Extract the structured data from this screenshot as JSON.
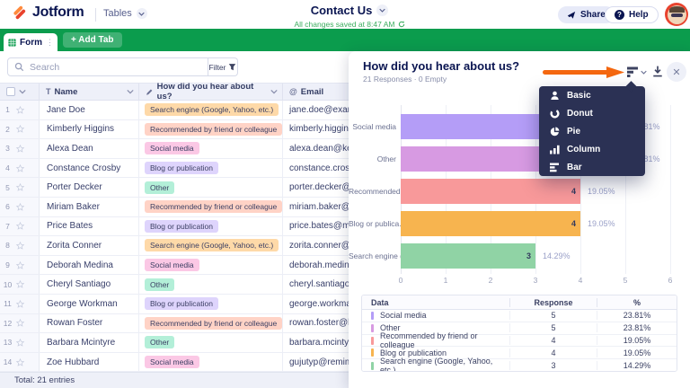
{
  "header": {
    "logo_text": "Jotform",
    "product_label": "Tables",
    "form_title": "Contact Us",
    "autosave_status": "All changes saved at 8:47 AM",
    "share_label": "Share",
    "help_label": "Help"
  },
  "tab_bar": {
    "form_tab_label": "Form",
    "add_tab_label": "+ Add Tab"
  },
  "toolbar": {
    "search_placeholder": "Search",
    "filter_label": "Filter"
  },
  "table": {
    "columns": [
      {
        "icon": "text-column-icon",
        "label": "Name"
      },
      {
        "icon": "pencil-icon",
        "label": "How did you hear about us?"
      },
      {
        "icon": "at-sign-icon",
        "label": "Email"
      }
    ],
    "rows": [
      {
        "num": 1,
        "name": "Jane Doe",
        "answer": "Search engine (Google, Yahoo, etc.)",
        "badge_bg": "#fed9a8",
        "email": "jane.doe@example"
      },
      {
        "num": 2,
        "name": "Kimberly Higgins",
        "answer": "Recommended by friend or colleague",
        "badge_bg": "#ffd3c6",
        "email": "kimberly.higgins@"
      },
      {
        "num": 3,
        "name": "Alexa Dean",
        "answer": "Social media",
        "badge_bg": "#fbc8e5",
        "email": "alexa.dean@kem.c"
      },
      {
        "num": 4,
        "name": "Constance Crosby",
        "answer": "Blog or publication",
        "badge_bg": "#ded4fc",
        "email": "constance.crosby@"
      },
      {
        "num": 5,
        "name": "Porter Decker",
        "answer": "Other",
        "badge_bg": "#b3efd8",
        "email": "porter.decker@liva"
      },
      {
        "num": 6,
        "name": "Miriam Baker",
        "answer": "Recommended by friend or colleague",
        "badge_bg": "#ffd3c6",
        "email": "miriam.baker@vok"
      },
      {
        "num": 7,
        "name": "Price Bates",
        "answer": "Blog or publication",
        "badge_bg": "#ded4fc",
        "email": "price.bates@miky"
      },
      {
        "num": 8,
        "name": "Zorita Conner",
        "answer": "Search engine (Google, Yahoo, etc.)",
        "badge_bg": "#fed9a8",
        "email": "zorita.conner@tos"
      },
      {
        "num": 9,
        "name": "Deborah Medina",
        "answer": "Social media",
        "badge_bg": "#fbc8e5",
        "email": "deborah.medina@"
      },
      {
        "num": 10,
        "name": "Cheryl Santiago",
        "answer": "Other",
        "badge_bg": "#b3efd8",
        "email": "cheryl.santiago@je"
      },
      {
        "num": 11,
        "name": "George Workman",
        "answer": "Blog or publication",
        "badge_bg": "#ded4fc",
        "email": "george.workman@"
      },
      {
        "num": 12,
        "name": "Rowan Foster",
        "answer": "Recommended by friend or colleague",
        "badge_bg": "#ffd3c6",
        "email": "rowan.foster@bih."
      },
      {
        "num": 13,
        "name": "Barbara Mcintyre",
        "answer": "Other",
        "badge_bg": "#b3efd8",
        "email": "barbara.mcintyre@"
      },
      {
        "num": 14,
        "name": "Zoe Hubbard",
        "answer": "Social media",
        "badge_bg": "#fbc8e5",
        "email": "gujutyp@remimigl"
      }
    ],
    "footer": "Total: 21 entries"
  },
  "panel": {
    "title": "How did you hear about us?",
    "responses_summary": "21 Responses · 0 Empty",
    "chart": {
      "max": 6,
      "xticks": [
        "0",
        "1",
        "2",
        "3",
        "4",
        "5",
        "6"
      ],
      "bars": [
        {
          "label": "Social media",
          "value": 5,
          "value_label": "5",
          "pct": "23.81%",
          "color": "#b49df7"
        },
        {
          "label": "Other",
          "value": 5,
          "value_label": "5",
          "pct": "23.81%",
          "color": "#d79ae2"
        },
        {
          "label": "Recommended...",
          "value": 4,
          "value_label": "4",
          "pct": "19.05%",
          "color": "#f8999a"
        },
        {
          "label": "Blog or publica...",
          "value": 4,
          "value_label": "4",
          "pct": "19.05%",
          "color": "#f7b44f"
        },
        {
          "label": "Search engine (...",
          "value": 3,
          "value_label": "3",
          "pct": "14.29%",
          "color": "#90d3a5"
        }
      ]
    },
    "chart_menu": {
      "items": [
        {
          "icon": "basic-chart-icon",
          "label": "Basic"
        },
        {
          "icon": "donut-chart-icon",
          "label": "Donut"
        },
        {
          "icon": "pie-chart-icon",
          "label": "Pie"
        },
        {
          "icon": "column-chart-icon",
          "label": "Column"
        },
        {
          "icon": "bar-chart-icon",
          "label": "Bar"
        }
      ]
    },
    "summary_table": {
      "headers": [
        "Data",
        "Response",
        "%"
      ],
      "rows": [
        {
          "label": "Social media",
          "response": "5",
          "pct": "23.81%",
          "color": "#b49df7"
        },
        {
          "label": "Other",
          "response": "5",
          "pct": "23.81%",
          "color": "#d79ae2"
        },
        {
          "label": "Recommended by friend or colleague",
          "response": "4",
          "pct": "19.05%",
          "color": "#f8999a"
        },
        {
          "label": "Blog or publication",
          "response": "4",
          "pct": "19.05%",
          "color": "#f7b44f"
        },
        {
          "label": "Search engine (Google, Yahoo, etc.)",
          "response": "3",
          "pct": "14.29%",
          "color": "#90d3a5"
        }
      ]
    }
  },
  "chart_data": {
    "type": "bar",
    "orientation": "horizontal",
    "title": "How did you hear about us?",
    "categories": [
      "Social media",
      "Other",
      "Recommended by friend or colleague",
      "Blog or publication",
      "Search engine (Google, Yahoo, etc.)"
    ],
    "values": [
      5,
      5,
      4,
      4,
      3
    ],
    "percentages": [
      "23.81%",
      "23.81%",
      "19.05%",
      "19.05%",
      "14.29%"
    ],
    "xlabel": "",
    "ylabel": "",
    "xlim": [
      0,
      6
    ],
    "xticks": [
      0,
      1,
      2,
      3,
      4,
      5,
      6
    ],
    "grid": true,
    "legend": false
  },
  "colors": {
    "brand_green": "#0b9c4d",
    "navy": "#0a1551",
    "annotation_orange": "#f4670f"
  }
}
